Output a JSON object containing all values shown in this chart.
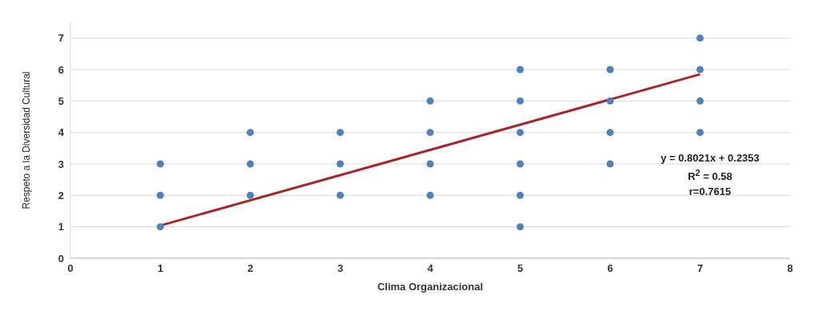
{
  "chart_data": {
    "type": "scatter",
    "xlabel": "Clima Organizacional",
    "ylabel": "Respeto a la Diversidad Cultural",
    "xlim": [
      0,
      8
    ],
    "xticks": [
      0,
      1,
      2,
      3,
      4,
      5,
      6,
      7,
      8
    ],
    "ylim": [
      0,
      7.5
    ],
    "yticks": [
      0,
      1,
      2,
      3,
      4,
      5,
      6,
      7
    ],
    "grid": "y",
    "legend": false,
    "series": [
      {
        "marker": "circle",
        "color": "#4f81bd",
        "x": [
          1,
          1,
          1,
          2,
          2,
          2,
          3,
          3,
          3,
          4,
          4,
          4,
          4,
          5,
          5,
          5,
          5,
          5,
          5,
          6,
          6,
          6,
          6,
          7,
          7,
          7,
          7
        ],
        "values": [
          1,
          2,
          3,
          2,
          3,
          4,
          2,
          3,
          4,
          2,
          3,
          4,
          5,
          1,
          2,
          3,
          4,
          5,
          6,
          3,
          4,
          5,
          6,
          4,
          5,
          6,
          7
        ]
      },
      {
        "type": "line",
        "marker": "none",
        "color": "#a8262b",
        "line_style": "solid",
        "x": [
          1,
          7
        ],
        "values": [
          1.04,
          5.85
        ]
      }
    ],
    "annotations": [
      "y = 0.8021x + 0.2353",
      "R$^{2}$ = 0.58",
      "r=0.7615"
    ]
  }
}
